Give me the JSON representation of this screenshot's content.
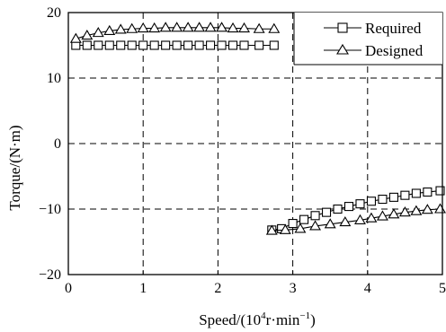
{
  "chart_data": {
    "type": "line",
    "xlabel_main": "Speed/(10",
    "xlabel_sup": "4",
    "xlabel_mid": "r·min",
    "xlabel_sup2": "−1",
    "xlabel_end": ")",
    "ylabel": "Torque/(N·m)",
    "xlim": [
      0,
      5
    ],
    "ylim": [
      -20,
      20
    ],
    "xticks": [
      "0",
      "1",
      "2",
      "3",
      "4",
      "5"
    ],
    "yticks": [
      "20",
      "10",
      "0",
      "−10",
      "−20"
    ],
    "grid": true,
    "legend_position": "top-right",
    "series": [
      {
        "name": "Required",
        "marker": "square",
        "x": [
          0.1,
          0.25,
          0.4,
          0.55,
          0.7,
          0.85,
          1.0,
          1.15,
          1.3,
          1.45,
          1.6,
          1.75,
          1.9,
          2.05,
          2.2,
          2.35,
          2.55,
          2.75,
          2.72,
          2.85,
          3.0,
          3.15,
          3.3,
          3.45,
          3.6,
          3.75,
          3.9,
          4.05,
          4.2,
          4.35,
          4.5,
          4.65,
          4.8,
          4.97
        ],
        "y": [
          15,
          15,
          15,
          15,
          15,
          15,
          15,
          15,
          15,
          15,
          15,
          15,
          15,
          15,
          15,
          15,
          15,
          15,
          -13.2,
          -13.0,
          -12.2,
          -11.6,
          -11.0,
          -10.5,
          -10.0,
          -9.6,
          -9.2,
          -8.8,
          -8.5,
          -8.2,
          -7.9,
          -7.6,
          -7.4,
          -7.2
        ],
        "break_after_index": 17
      },
      {
        "name": "Designed",
        "marker": "triangle",
        "x": [
          0.1,
          0.25,
          0.4,
          0.55,
          0.7,
          0.85,
          1.0,
          1.15,
          1.3,
          1.45,
          1.6,
          1.75,
          1.9,
          2.05,
          2.2,
          2.35,
          2.55,
          2.75,
          2.72,
          2.9,
          3.1,
          3.3,
          3.5,
          3.7,
          3.9,
          4.05,
          4.2,
          4.35,
          4.5,
          4.65,
          4.8,
          4.97
        ],
        "y": [
          16.0,
          16.5,
          16.9,
          17.2,
          17.4,
          17.5,
          17.6,
          17.6,
          17.7,
          17.7,
          17.7,
          17.7,
          17.7,
          17.7,
          17.6,
          17.6,
          17.5,
          17.5,
          -13.3,
          -13.2,
          -13.0,
          -12.6,
          -12.3,
          -12.0,
          -11.7,
          -11.4,
          -11.1,
          -10.8,
          -10.5,
          -10.3,
          -10.1,
          -10.0
        ],
        "break_after_index": 17
      }
    ]
  }
}
